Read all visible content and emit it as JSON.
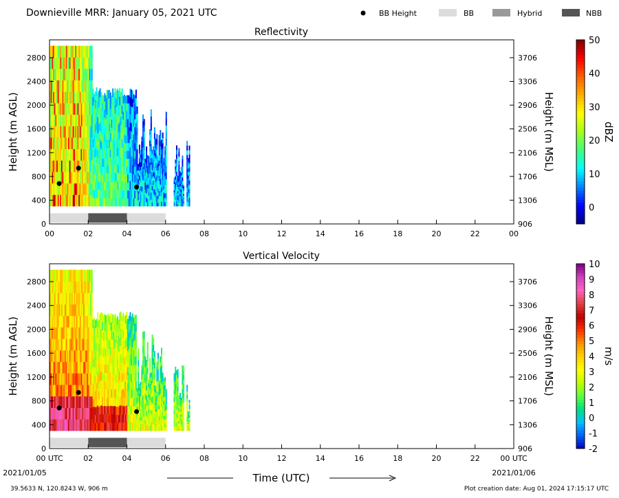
{
  "header": {
    "title": "Downieville MRR:  January 05, 2021 UTC",
    "legend": [
      {
        "label": "BB Height",
        "marker": "dot",
        "color": "#000000"
      },
      {
        "label": "BB",
        "marker": "box",
        "color": "#dcdcdc"
      },
      {
        "label": "Hybrid",
        "marker": "box",
        "color": "#999999"
      },
      {
        "label": "NBB",
        "marker": "box",
        "color": "#555555"
      }
    ]
  },
  "footer": {
    "location": "39.5633 N, 120.8243 W, 906 m",
    "creation_date": "Plot creation date: Aug 01, 2024 17:15:17 UTC",
    "xlabel": "Time (UTC)",
    "start_date": "2021/01/05",
    "end_date": "2021/01/06"
  },
  "colors": {
    "dbz_scale": [
      "#000080",
      "#0000ff",
      "#0080ff",
      "#00ffff",
      "#40ff80",
      "#a0ff20",
      "#ffff00",
      "#ffb000",
      "#ff6000",
      "#ff0000",
      "#800000"
    ],
    "ms_scale": [
      "#0000c0",
      "#0060ff",
      "#00c0ff",
      "#00e080",
      "#60ff40",
      "#c0ff00",
      "#ffff00",
      "#ffd000",
      "#ff9000",
      "#ff3000",
      "#c00000",
      "#e04040",
      "#ff60c0",
      "#d040c0",
      "#800080"
    ]
  },
  "chart_data": [
    {
      "type": "heatmap",
      "title": "Reflectivity",
      "ylabel": "Height (m AGL)",
      "ylabel_right": "Height (m MSL)",
      "x_ticks": [
        "00",
        "02",
        "04",
        "06",
        "08",
        "10",
        "12",
        "14",
        "16",
        "18",
        "20",
        "22",
        "00"
      ],
      "xlim": [
        0,
        24
      ],
      "y_ticks": [
        0,
        400,
        800,
        1200,
        1600,
        2000,
        2400,
        2800
      ],
      "y_ticks_right": [
        "906",
        "1306",
        "1706",
        "2106",
        "2506",
        "2906",
        "3306",
        "3706"
      ],
      "ylim": [
        0,
        3100
      ],
      "colorbar": {
        "label": "dBZ",
        "ticks": [
          0,
          10,
          20,
          30,
          40,
          50
        ],
        "range": [
          -5,
          50
        ]
      },
      "bb_height_points": [
        {
          "x": 0.5,
          "y": 680
        },
        {
          "x": 1.5,
          "y": 940
        },
        {
          "x": 4.5,
          "y": 620
        }
      ],
      "bb_type_bar": [
        {
          "type": "BB",
          "start": 0,
          "end": 2
        },
        {
          "type": "NBB",
          "start": 2,
          "end": 4
        },
        {
          "type": "BB",
          "start": 4,
          "end": 6
        }
      ],
      "data_extent": {
        "start": 0,
        "end": 7.2,
        "bottom_height": 300
      }
    },
    {
      "type": "heatmap",
      "title": "Vertical Velocity",
      "ylabel": "Height (m AGL)",
      "ylabel_right": "Height (m MSL)",
      "x_ticks": [
        "00 UTC",
        "02",
        "04",
        "06",
        "08",
        "10",
        "12",
        "14",
        "16",
        "18",
        "20",
        "22",
        "00 UTC"
      ],
      "xlim": [
        0,
        24
      ],
      "y_ticks": [
        0,
        400,
        800,
        1200,
        1600,
        2000,
        2400,
        2800
      ],
      "y_ticks_right": [
        "906",
        "1306",
        "1706",
        "2106",
        "2506",
        "2906",
        "3306",
        "3706"
      ],
      "ylim": [
        0,
        3100
      ],
      "colorbar": {
        "label": "m/s",
        "ticks": [
          -2,
          -1,
          0,
          1,
          2,
          3,
          4,
          5,
          6,
          7,
          8,
          9,
          10
        ],
        "range": [
          -2,
          10
        ]
      },
      "bb_height_points": [
        {
          "x": 0.5,
          "y": 680
        },
        {
          "x": 1.5,
          "y": 940
        },
        {
          "x": 4.5,
          "y": 620
        }
      ],
      "bb_type_bar": [
        {
          "type": "BB",
          "start": 0,
          "end": 2
        },
        {
          "type": "NBB",
          "start": 2,
          "end": 4
        },
        {
          "type": "BB",
          "start": 4,
          "end": 6
        }
      ],
      "data_extent": {
        "start": 0,
        "end": 7.2,
        "bottom_height": 300
      }
    }
  ]
}
